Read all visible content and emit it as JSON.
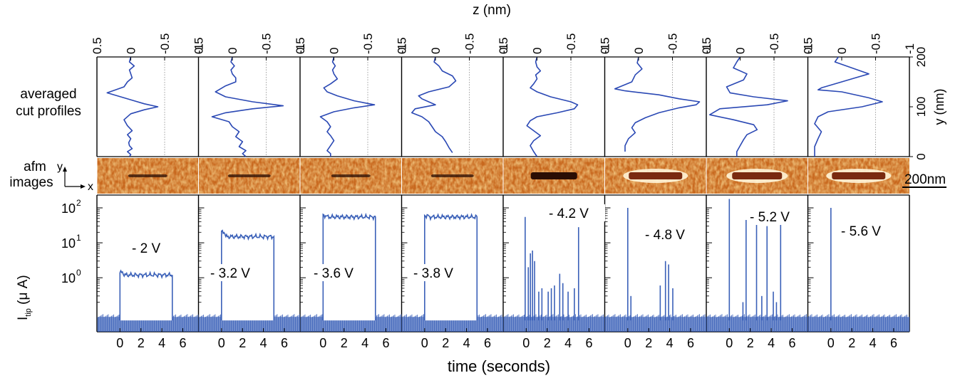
{
  "figure": {
    "z_axis_label": "z (nm)",
    "y_axis_label": "y (nm)",
    "time_axis_label": "time (seconds)",
    "row_label_profiles": [
      "averaged",
      "cut profiles"
    ],
    "row_label_afm": [
      "afm",
      "images"
    ],
    "current_axis_label": "I",
    "current_axis_subscript": "tip",
    "current_axis_unit": "(μ A)",
    "coord_x_label": "x",
    "coord_y_label": "y",
    "scalebar_label": "200nm",
    "colors": {
      "profile_line": "#2a48b4",
      "current_line": "#3a60b8",
      "gridline": "#888888"
    }
  },
  "chart_data": [
    {
      "type": "line",
      "name": "averaged cut profiles",
      "xlabel": "z (nm)",
      "ylabel": "y (nm)",
      "xlim": [
        0.5,
        -1
      ],
      "ylim": [
        0,
        200
      ],
      "x_ticks": [
        "0.5",
        "0",
        "-0.5",
        "-1"
      ],
      "y_ticks": [
        "0",
        "100",
        "200"
      ],
      "grid_x": [
        -0.5,
        -1
      ],
      "panels": [
        {
          "z": [
            0,
            0.02,
            -0.05,
            0.02,
            0,
            -0.02,
            0.05,
            0.1,
            0.35,
            0.1,
            -0.05,
            -0.2,
            -0.4,
            -0.2,
            0,
            0.1,
            0.05,
            -0.02,
            0.05,
            0,
            0.03,
            0.02,
            -0.02,
            0.05,
            0,
            0.02
          ],
          "y": [
            200,
            190,
            182,
            174,
            166,
            158,
            150,
            140,
            128,
            118,
            112,
            106,
            100,
            94,
            86,
            74,
            62,
            52,
            44,
            36,
            28,
            22,
            16,
            10,
            4,
            0
          ]
        },
        {
          "z": [
            0,
            0.02,
            -0.03,
            0.02,
            0,
            -0.05,
            -0.05,
            0.1,
            0.25,
            0.1,
            -0.3,
            -0.75,
            -0.3,
            0.1,
            0.3,
            0.05,
            0,
            -0.1,
            -0.05,
            -0.15,
            -0.1,
            -0.2,
            -0.15,
            -0.2
          ],
          "y": [
            200,
            190,
            182,
            174,
            166,
            158,
            150,
            142,
            130,
            120,
            110,
            102,
            96,
            88,
            80,
            70,
            60,
            50,
            40,
            30,
            20,
            12,
            6,
            0
          ]
        },
        {
          "z": [
            0,
            0.02,
            -0.02,
            0.02,
            0,
            -0.05,
            0.05,
            0.15,
            0.1,
            -0.05,
            -0.3,
            -0.6,
            -0.3,
            0,
            0.2,
            0.1,
            0.05,
            0.1,
            0.05,
            0,
            0.05,
            0.1,
            0.05,
            0.05
          ],
          "y": [
            200,
            190,
            182,
            174,
            166,
            156,
            146,
            138,
            130,
            122,
            112,
            104,
            98,
            90,
            80,
            70,
            60,
            50,
            42,
            32,
            22,
            12,
            6,
            0
          ]
        },
        {
          "z": [
            0,
            0.02,
            -0.05,
            -0.1,
            -0.25,
            -0.3,
            -0.2,
            0.1,
            0.25,
            0.2,
            0.1,
            0,
            0.3,
            0.35,
            0.2,
            0.1,
            0.05,
            0,
            -0.1,
            -0.15,
            -0.2,
            -0.25
          ],
          "y": [
            200,
            190,
            182,
            172,
            162,
            152,
            140,
            130,
            122,
            116,
            110,
            104,
            96,
            88,
            80,
            70,
            60,
            50,
            40,
            30,
            18,
            8
          ]
        },
        {
          "z": [
            0,
            0.02,
            0,
            -0.05,
            0.02,
            0,
            0.05,
            0.1,
            0,
            -0.2,
            -0.5,
            -0.6,
            -0.55,
            -0.3,
            0,
            0.1,
            0.15,
            0.05,
            -0.05,
            0.05,
            0.1,
            0.05,
            0
          ],
          "y": [
            200,
            190,
            180,
            172,
            164,
            156,
            146,
            138,
            130,
            120,
            110,
            104,
            96,
            88,
            80,
            72,
            62,
            52,
            42,
            32,
            22,
            10,
            0
          ]
        },
        {
          "z": [
            0,
            0.02,
            -0.05,
            0.05,
            0.1,
            0.35,
            0.2,
            -0.3,
            -0.6,
            -0.9,
            -0.85,
            -0.6,
            -0.3,
            -0.1,
            0.05,
            0.1,
            0.05,
            0.15,
            0.2,
            0.2
          ],
          "y": [
            200,
            188,
            176,
            164,
            150,
            136,
            132,
            124,
            116,
            110,
            104,
            98,
            88,
            78,
            68,
            58,
            48,
            36,
            22,
            10
          ]
        },
        {
          "z": [
            0,
            0.05,
            0.1,
            -0.1,
            -0.05,
            0.2,
            0.15,
            -0.2,
            -0.7,
            -0.4,
            0.3,
            0.45,
            0.1,
            -0.2,
            -0.25,
            -0.1,
            -0.05,
            0,
            0.05,
            0.05
          ],
          "y": [
            200,
            190,
            178,
            166,
            154,
            140,
            128,
            120,
            112,
            104,
            96,
            84,
            74,
            64,
            54,
            44,
            34,
            22,
            10,
            0
          ]
        },
        {
          "z": [
            0.05,
            0.1,
            -0.4,
            -0.2,
            0,
            0.3,
            0.35,
            0,
            -0.4,
            -0.6,
            -0.3,
            0.2,
            0.35,
            0.4,
            0.3,
            0.35,
            0.4,
            0.4
          ],
          "y": [
            200,
            190,
            166,
            158,
            150,
            138,
            134,
            130,
            118,
            110,
            100,
            90,
            80,
            66,
            50,
            36,
            20,
            0
          ]
        }
      ]
    },
    {
      "type": "line",
      "name": "tip current vs time",
      "xlabel": "time (seconds)",
      "ylabel": "I_tip (μ A)",
      "xlim": [
        -2.2,
        7.5
      ],
      "ylog": true,
      "ylim": [
        0.05,
        100
      ],
      "x_ticks": [
        "0",
        "2",
        "4",
        "6"
      ],
      "y_ticks": [
        "10^0",
        "10^1",
        "10^2"
      ],
      "baseline": 0.06,
      "panels": [
        {
          "label": "- 2 V",
          "plateau": {
            "start": 0,
            "end": 5,
            "level": 1.2,
            "step_edge_level": 1.4
          }
        },
        {
          "label": "- 3.2 V",
          "plateau": {
            "start": 0,
            "end": 5,
            "level": 15,
            "step_edge_level": 20
          }
        },
        {
          "label": "- 3.6 V",
          "plateau": {
            "start": 0,
            "end": 5,
            "level": 55,
            "step_edge_level": 60
          }
        },
        {
          "label": "- 3.8 V",
          "plateau": {
            "start": 0,
            "end": 5,
            "level": 55,
            "step_edge_level": 60
          }
        },
        {
          "label": "- 4.2 V",
          "spikes": [
            [
              -0.1,
              55
            ],
            [
              0.2,
              2
            ],
            [
              0.4,
              5
            ],
            [
              0.6,
              6
            ],
            [
              0.8,
              3
            ],
            [
              1.2,
              0.4
            ],
            [
              1.5,
              0.5
            ],
            [
              2.1,
              0.4
            ],
            [
              2.4,
              0.5
            ],
            [
              2.7,
              0.6
            ],
            [
              3.2,
              1.3
            ],
            [
              3.5,
              0.7
            ],
            [
              4.0,
              0.4
            ],
            [
              4.6,
              0.5
            ],
            [
              5.0,
              28
            ]
          ]
        },
        {
          "label": "- 4.8 V",
          "spikes": [
            [
              0,
              100
            ],
            [
              0.3,
              0.3
            ],
            [
              3.1,
              0.6
            ],
            [
              3.6,
              3
            ],
            [
              3.9,
              2.4
            ],
            [
              4.3,
              0.5
            ]
          ]
        },
        {
          "label": "- 5.2 V",
          "spikes": [
            [
              0,
              180
            ],
            [
              1.3,
              0.2
            ],
            [
              1.6,
              45
            ],
            [
              2.6,
              45
            ],
            [
              3.1,
              0.3
            ],
            [
              3.6,
              30
            ],
            [
              4.2,
              0.4
            ],
            [
              4.5,
              0.2
            ],
            [
              4.9,
              45
            ]
          ]
        },
        {
          "label": "- 5.6 V",
          "spikes": [
            [
              0,
              100
            ]
          ]
        }
      ]
    }
  ]
}
